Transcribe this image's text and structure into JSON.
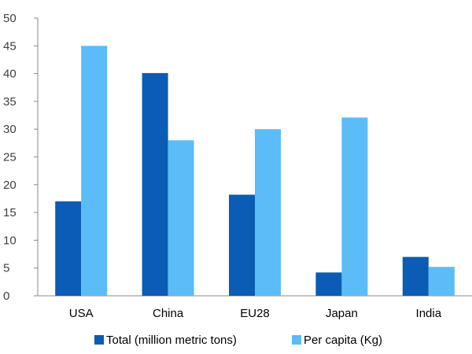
{
  "chart_data": {
    "type": "bar",
    "categories": [
      "USA",
      "China",
      "EU28",
      "Japan",
      "India"
    ],
    "series": [
      {
        "name": "Total (million metric tons)",
        "color": "#0a5cb4",
        "values": [
          17,
          40.1,
          18.2,
          4.2,
          7
        ]
      },
      {
        "name": "Per capita (Kg)",
        "color": "#5bbcf8",
        "values": [
          45,
          28,
          30,
          32.1,
          5.2
        ]
      }
    ],
    "title": "",
    "xlabel": "",
    "ylabel": "",
    "ylim": [
      0,
      50
    ],
    "yticks": [
      "0",
      "5",
      "10",
      "15",
      "20",
      "25",
      "30",
      "35",
      "40",
      "45",
      "50"
    ],
    "grid": false,
    "legend_position": "bottom"
  }
}
